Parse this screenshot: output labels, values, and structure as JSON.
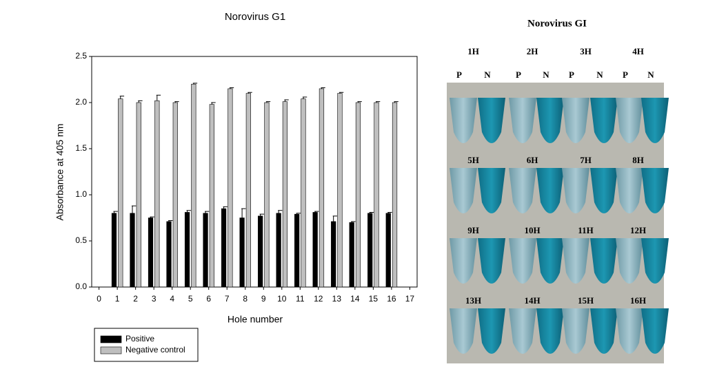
{
  "chart_data": {
    "type": "bar",
    "title": "Norovirus G1",
    "x_label": "Hole number",
    "y_label": "Absorbance at 405 nm",
    "categories": [
      1,
      2,
      3,
      4,
      5,
      6,
      7,
      8,
      9,
      10,
      11,
      12,
      13,
      14,
      15,
      16
    ],
    "series": [
      {
        "name": "Positive",
        "color": "#000000",
        "values": [
          0.8,
          0.8,
          0.75,
          0.71,
          0.81,
          0.8,
          0.85,
          0.75,
          0.77,
          0.8,
          0.79,
          0.81,
          0.71,
          0.7,
          0.8,
          0.8
        ],
        "errors": [
          0.02,
          0.08,
          0.01,
          0.01,
          0.02,
          0.02,
          0.02,
          0.1,
          0.02,
          0.03,
          0.01,
          0.01,
          0.06,
          0.01,
          0.01,
          0.01
        ]
      },
      {
        "name": "Negative control",
        "color": "#bfbfbf",
        "values": [
          2.04,
          2.0,
          2.02,
          2.0,
          2.2,
          1.98,
          2.15,
          2.1,
          2.0,
          2.01,
          2.04,
          2.15,
          2.1,
          2.0,
          2.0,
          2.0
        ],
        "errors": [
          0.03,
          0.02,
          0.06,
          0.01,
          0.01,
          0.02,
          0.01,
          0.01,
          0.01,
          0.02,
          0.02,
          0.01,
          0.01,
          0.01,
          0.01,
          0.01
        ]
      }
    ],
    "xlim": [
      -0.4,
      17.4
    ],
    "xticks": [
      0,
      1,
      2,
      3,
      4,
      5,
      6,
      7,
      8,
      9,
      10,
      11,
      12,
      13,
      14,
      15,
      16,
      17
    ],
    "ylim": [
      0,
      2.5
    ],
    "yticks": [
      {
        "value": 0,
        "label": "0.0"
      },
      {
        "value": 0.5,
        "label": "0.5"
      },
      {
        "value": 1,
        "label": "1.0"
      },
      {
        "value": 1.5,
        "label": "1.5"
      },
      {
        "value": 2,
        "label": "2.0"
      },
      {
        "value": 2.5,
        "label": "2.5"
      }
    ],
    "legend": "bottom-left"
  },
  "photo": {
    "title": "Norovirus GI",
    "rows": [
      [
        "1H",
        "2H",
        "3H",
        "4H"
      ],
      [
        "5H",
        "6H",
        "7H",
        "8H"
      ],
      [
        "9H",
        "10H",
        "11H",
        "12H"
      ],
      [
        "13H",
        "14H",
        "15H",
        "16H"
      ]
    ],
    "tube_labels": [
      "P",
      "N"
    ]
  }
}
